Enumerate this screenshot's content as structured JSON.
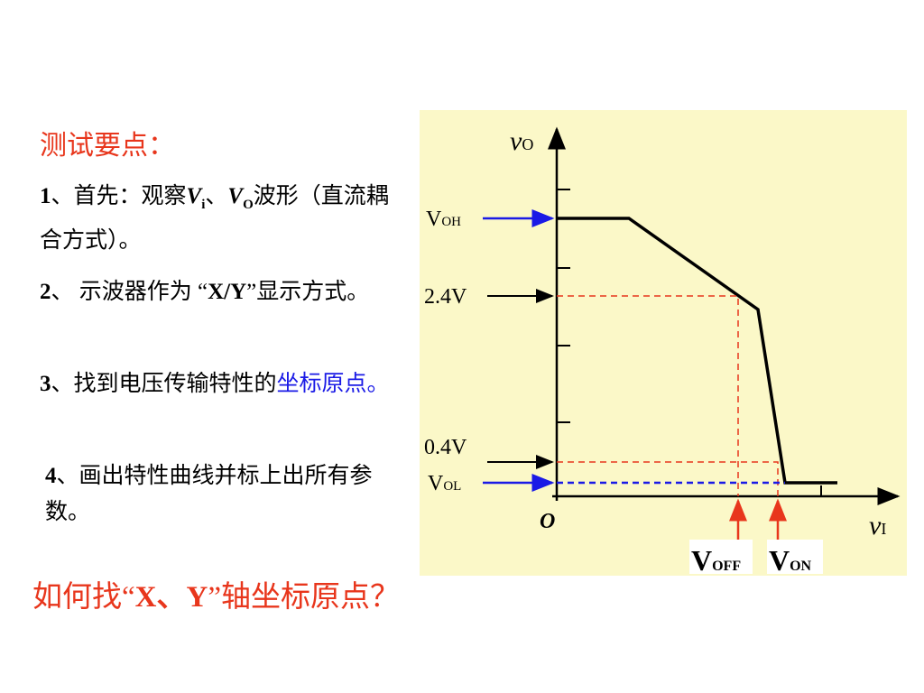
{
  "heading": "测试要点：",
  "steps": [
    [
      "1",
      "、首先：观察",
      "V",
      "i",
      "、",
      "V",
      "O",
      "波形（直流耦合方式）。"
    ],
    [
      "2",
      "、 示波器作为 “",
      "X/Y",
      "”显示方式。"
    ],
    [
      "3",
      "、找到电压传输特性的",
      "坐标原点。"
    ],
    [
      "4",
      "、画出特性曲线并标上出所有参数。"
    ]
  ],
  "question": [
    "如何找“",
    "X、Y",
    "”轴坐标原点？"
  ],
  "diagram": {
    "y_axis": [
      "v",
      "O"
    ],
    "x_axis": [
      "v",
      "I"
    ],
    "origin": "O",
    "voh": [
      "V",
      "OH"
    ],
    "v_high": "2.4V",
    "v_low": "0.4V",
    "vol": [
      "V",
      "OL"
    ],
    "voff": [
      "V",
      "OFF"
    ],
    "von": [
      "V",
      "ON"
    ]
  }
}
